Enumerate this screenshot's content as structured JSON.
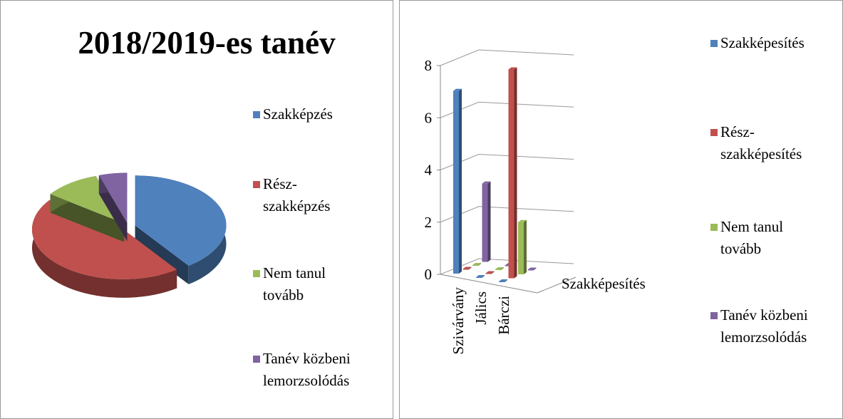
{
  "chart_data": [
    {
      "type": "pie",
      "title": "2018/2019-es tanév",
      "categories": [
        "Szakképzés",
        "Rész-szakképzés",
        "Nem tanul tovább",
        "Tanév közbeni lemorzsolódás"
      ],
      "values": [
        40,
        45,
        10,
        5
      ],
      "colors": [
        "#4f81bd",
        "#c0504d",
        "#9bbb59",
        "#8064a2"
      ]
    },
    {
      "type": "bar3d",
      "categories": [
        "Szivárvány",
        "Jálics",
        "Bárczi"
      ],
      "series": [
        {
          "name": "Szakképesítés",
          "color": "#4f81bd",
          "values": [
            7,
            0,
            0
          ]
        },
        {
          "name": "Rész-szakképesítés",
          "color": "#c0504d",
          "values": [
            0,
            0,
            8
          ]
        },
        {
          "name": "Nem tanul tovább",
          "color": "#9bbb59",
          "values": [
            0,
            0,
            2
          ]
        },
        {
          "name": "Tanév közbeni lemorzsolódás",
          "color": "#8064a2",
          "values": [
            3,
            0,
            0
          ]
        }
      ],
      "ylim": [
        0,
        8
      ],
      "yticks": [
        0,
        2,
        4,
        6,
        8
      ],
      "grid": true
    }
  ]
}
